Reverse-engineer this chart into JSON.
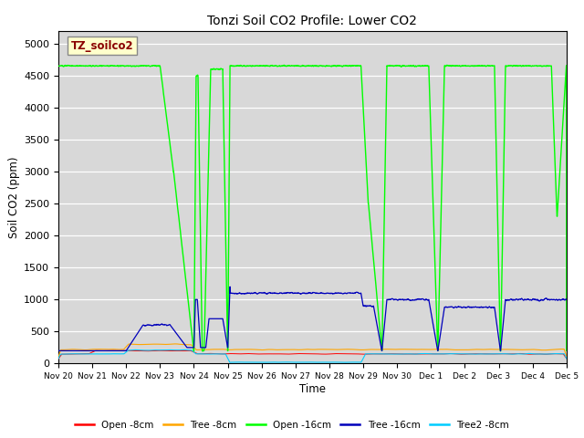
{
  "title": "Tonzi Soil CO2 Profile: Lower CO2",
  "xlabel": "Time",
  "ylabel": "Soil CO2 (ppm)",
  "ylim": [
    0,
    5200
  ],
  "yticks": [
    0,
    500,
    1000,
    1500,
    2000,
    2500,
    3000,
    3500,
    4000,
    4500,
    5000
  ],
  "bg_color": "#d8d8d8",
  "legend_label": "TZ_soilco2",
  "series_colors": {
    "open8": "#ff0000",
    "tree8": "#ffa500",
    "open16": "#00ff00",
    "tree16": "#0000bb",
    "tree2_8": "#00ccff"
  },
  "series_labels": {
    "open8": "Open -8cm",
    "tree8": "Tree -8cm",
    "open16": "Open -16cm",
    "tree16": "Tree -16cm",
    "tree2_8": "Tree2 -8cm"
  },
  "x_tick_labels": [
    "Nov 20",
    "Nov 21",
    "Nov 22",
    "Nov 23",
    "Nov 24",
    "Nov 25",
    "Nov 26",
    "Nov 27",
    "Nov 28",
    "Nov 29",
    "Nov 30",
    "Dec 1",
    "Dec 2",
    "Dec 3",
    "Dec 4",
    "Dec 5"
  ],
  "n_points": 3000
}
